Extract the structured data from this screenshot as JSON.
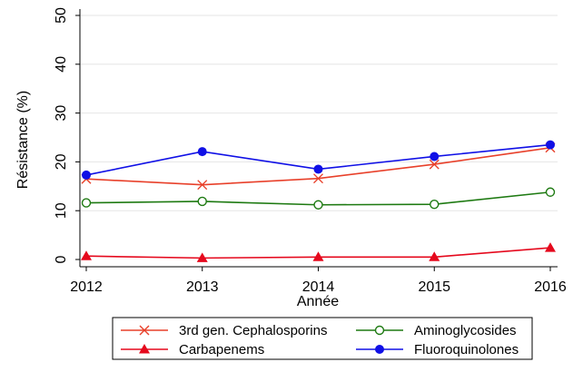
{
  "chart_data": {
    "type": "line",
    "title": "",
    "xlabel": "Année",
    "ylabel": "Résistance (%)",
    "x": [
      2012,
      2013,
      2014,
      2015,
      2016
    ],
    "xlim": [
      2012,
      2016
    ],
    "ylim": [
      0,
      50
    ],
    "yticks": [
      0,
      10,
      20,
      30,
      40,
      50
    ],
    "xticks": [
      2012,
      2013,
      2014,
      2015,
      2016
    ],
    "grid": "horizontal",
    "legend_position": "bottom",
    "series": [
      {
        "name": "3rd gen. Cephalosporins",
        "values": [
          16.5,
          15.3,
          16.6,
          19.5,
          22.9
        ],
        "color": "#e8402a",
        "marker": "x"
      },
      {
        "name": "Aminoglycosides",
        "values": [
          11.6,
          11.9,
          11.2,
          11.3,
          13.8
        ],
        "color": "#1e7a12",
        "marker": "hollow-circle"
      },
      {
        "name": "Carbapenems",
        "values": [
          0.7,
          0.3,
          0.5,
          0.5,
          2.4
        ],
        "color": "#e5091d",
        "marker": "triangle"
      },
      {
        "name": "Fluoroquinolones",
        "values": [
          17.3,
          22.1,
          18.5,
          21.1,
          23.5
        ],
        "color": "#1010e6",
        "marker": "filled-circle"
      }
    ]
  }
}
